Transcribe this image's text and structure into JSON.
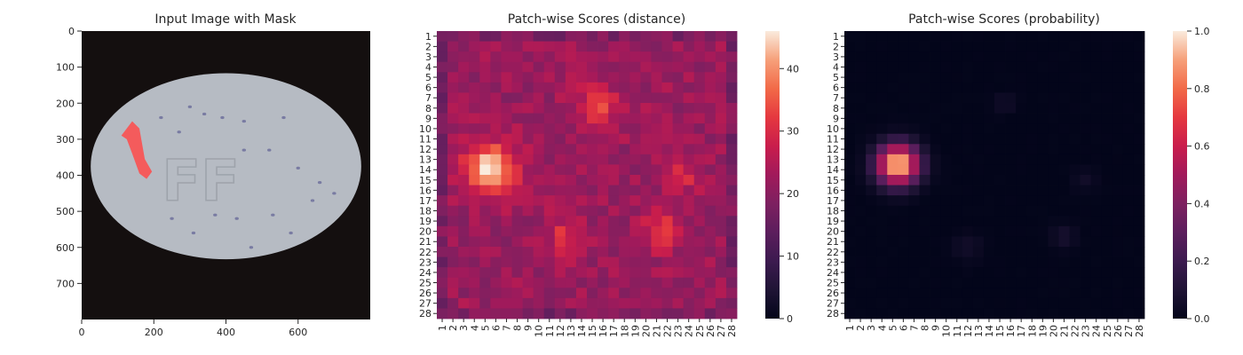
{
  "chart_data": [
    {
      "type": "image",
      "title": "Input Image with Mask",
      "xticks": [
        0,
        200,
        400,
        600
      ],
      "yticks": [
        0,
        100,
        200,
        300,
        400,
        500,
        600,
        700
      ],
      "xlim": [
        0,
        800
      ],
      "ylim": [
        800,
        0
      ],
      "image": {
        "background": "#140f0f",
        "ellipse": {
          "cx": 400,
          "cy": 375,
          "rx": 375,
          "ry": 258,
          "color": "#b6bbc3"
        },
        "embossed_text": "FF",
        "mask_color": "#ff4a4a",
        "mask_path": [
          [
            110,
            290
          ],
          [
            140,
            250
          ],
          [
            160,
            270
          ],
          [
            175,
            355
          ],
          [
            195,
            390
          ],
          [
            180,
            410
          ],
          [
            160,
            395
          ],
          [
            140,
            340
          ],
          [
            125,
            300
          ]
        ]
      }
    },
    {
      "type": "heatmap",
      "title": "Patch-wise Scores (distance)",
      "rows": 28,
      "cols": 28,
      "colormap": "rocket",
      "vmin": 0,
      "vmax": 46,
      "colorbar_ticks": [
        0,
        10,
        20,
        30,
        40
      ],
      "base_value": 22,
      "hotspots": [
        {
          "row": 14,
          "col": 5.5,
          "radius": 2.8,
          "peak": 46
        },
        {
          "row": 8,
          "col": 15.5,
          "radius": 2.4,
          "peak": 32
        },
        {
          "row": 20.5,
          "col": 12.5,
          "radius": 2.2,
          "peak": 30
        },
        {
          "row": 20,
          "col": 21.5,
          "radius": 2.2,
          "peak": 31
        },
        {
          "row": 14.5,
          "col": 23.5,
          "radius": 2,
          "peak": 29
        }
      ]
    },
    {
      "type": "heatmap",
      "title": "Patch-wise Scores (probability)",
      "rows": 28,
      "cols": 28,
      "colormap": "rocket",
      "vmin": 0,
      "vmax": 1,
      "colorbar_ticks": [
        0.0,
        0.2,
        0.4,
        0.6,
        0.8,
        1.0
      ],
      "colorbar_tick_labels": [
        "0.0",
        "0.2",
        "0.4",
        "0.6",
        "0.8",
        "1.0"
      ],
      "base_value": 0.0,
      "hotspots": [
        {
          "row": 13.5,
          "col": 5.5,
          "radius": 2.0,
          "peak": 1.0
        },
        {
          "row": 7.5,
          "col": 15.5,
          "radius": 1.0,
          "peak": 0.06
        },
        {
          "row": 20.5,
          "col": 21,
          "radius": 1.2,
          "peak": 0.08
        },
        {
          "row": 21.5,
          "col": 12,
          "radius": 1.4,
          "peak": 0.06
        },
        {
          "row": 15,
          "col": 23,
          "radius": 1.2,
          "peak": 0.05
        }
      ]
    }
  ]
}
